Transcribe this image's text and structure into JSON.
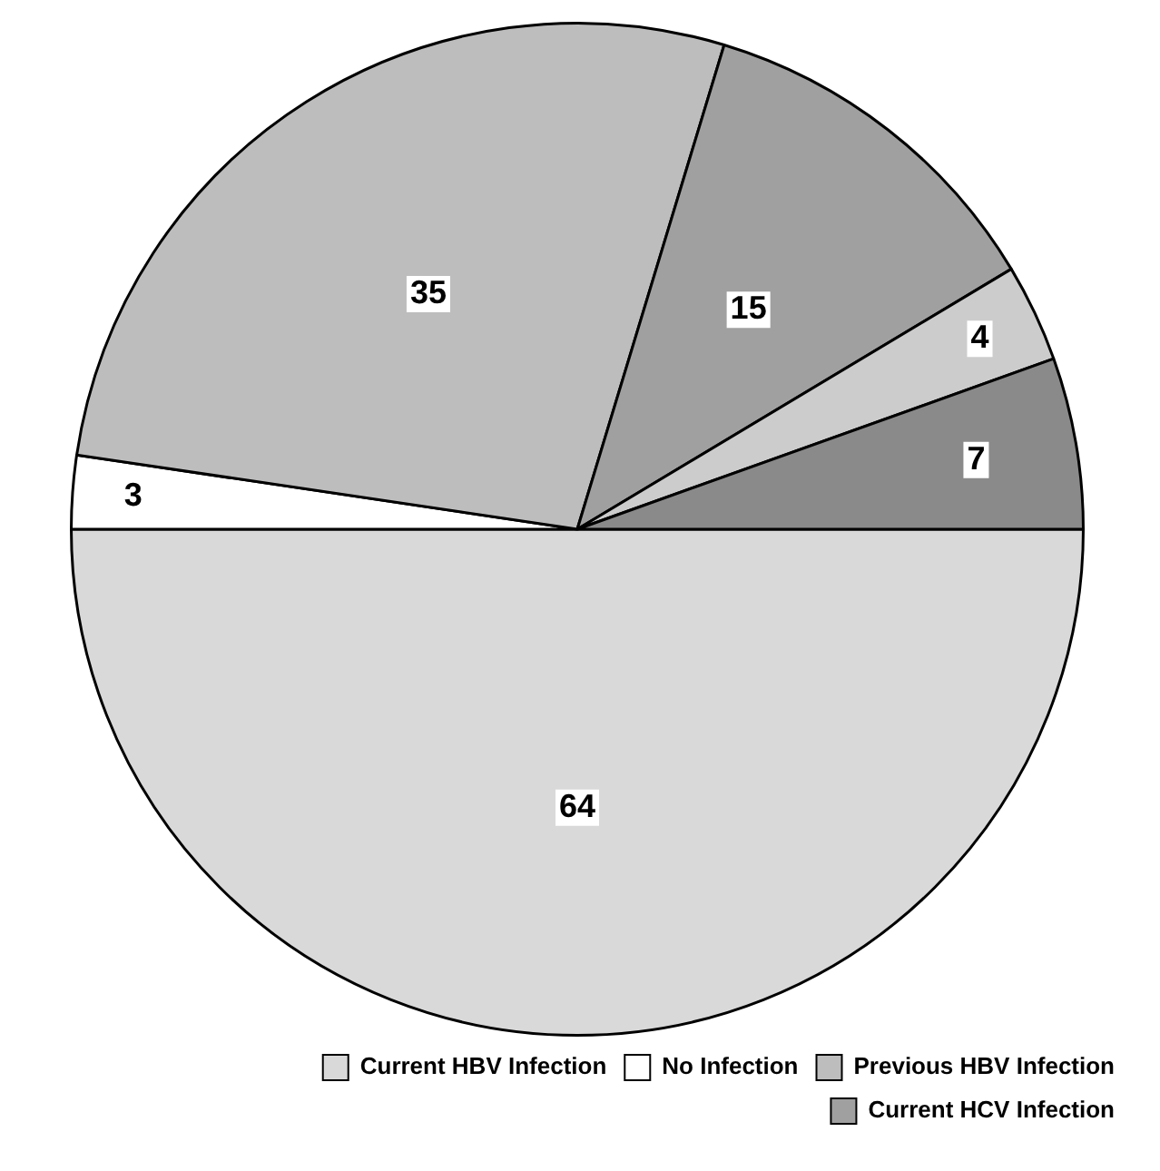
{
  "chart_data": {
    "type": "pie",
    "categories": [
      "Current HBV Infection",
      "No Infection",
      "Previous HBV Infection",
      "Current HCV Infection",
      null,
      null
    ],
    "values": [
      64,
      3,
      35,
      15,
      4,
      7
    ],
    "colors": [
      "#d9d9d9",
      "#ffffff",
      "#bdbdbd",
      "#a0a0a0",
      "#cccccc",
      "#8a8a8a"
    ],
    "data_labels": true,
    "legend": "bottom right"
  }
}
